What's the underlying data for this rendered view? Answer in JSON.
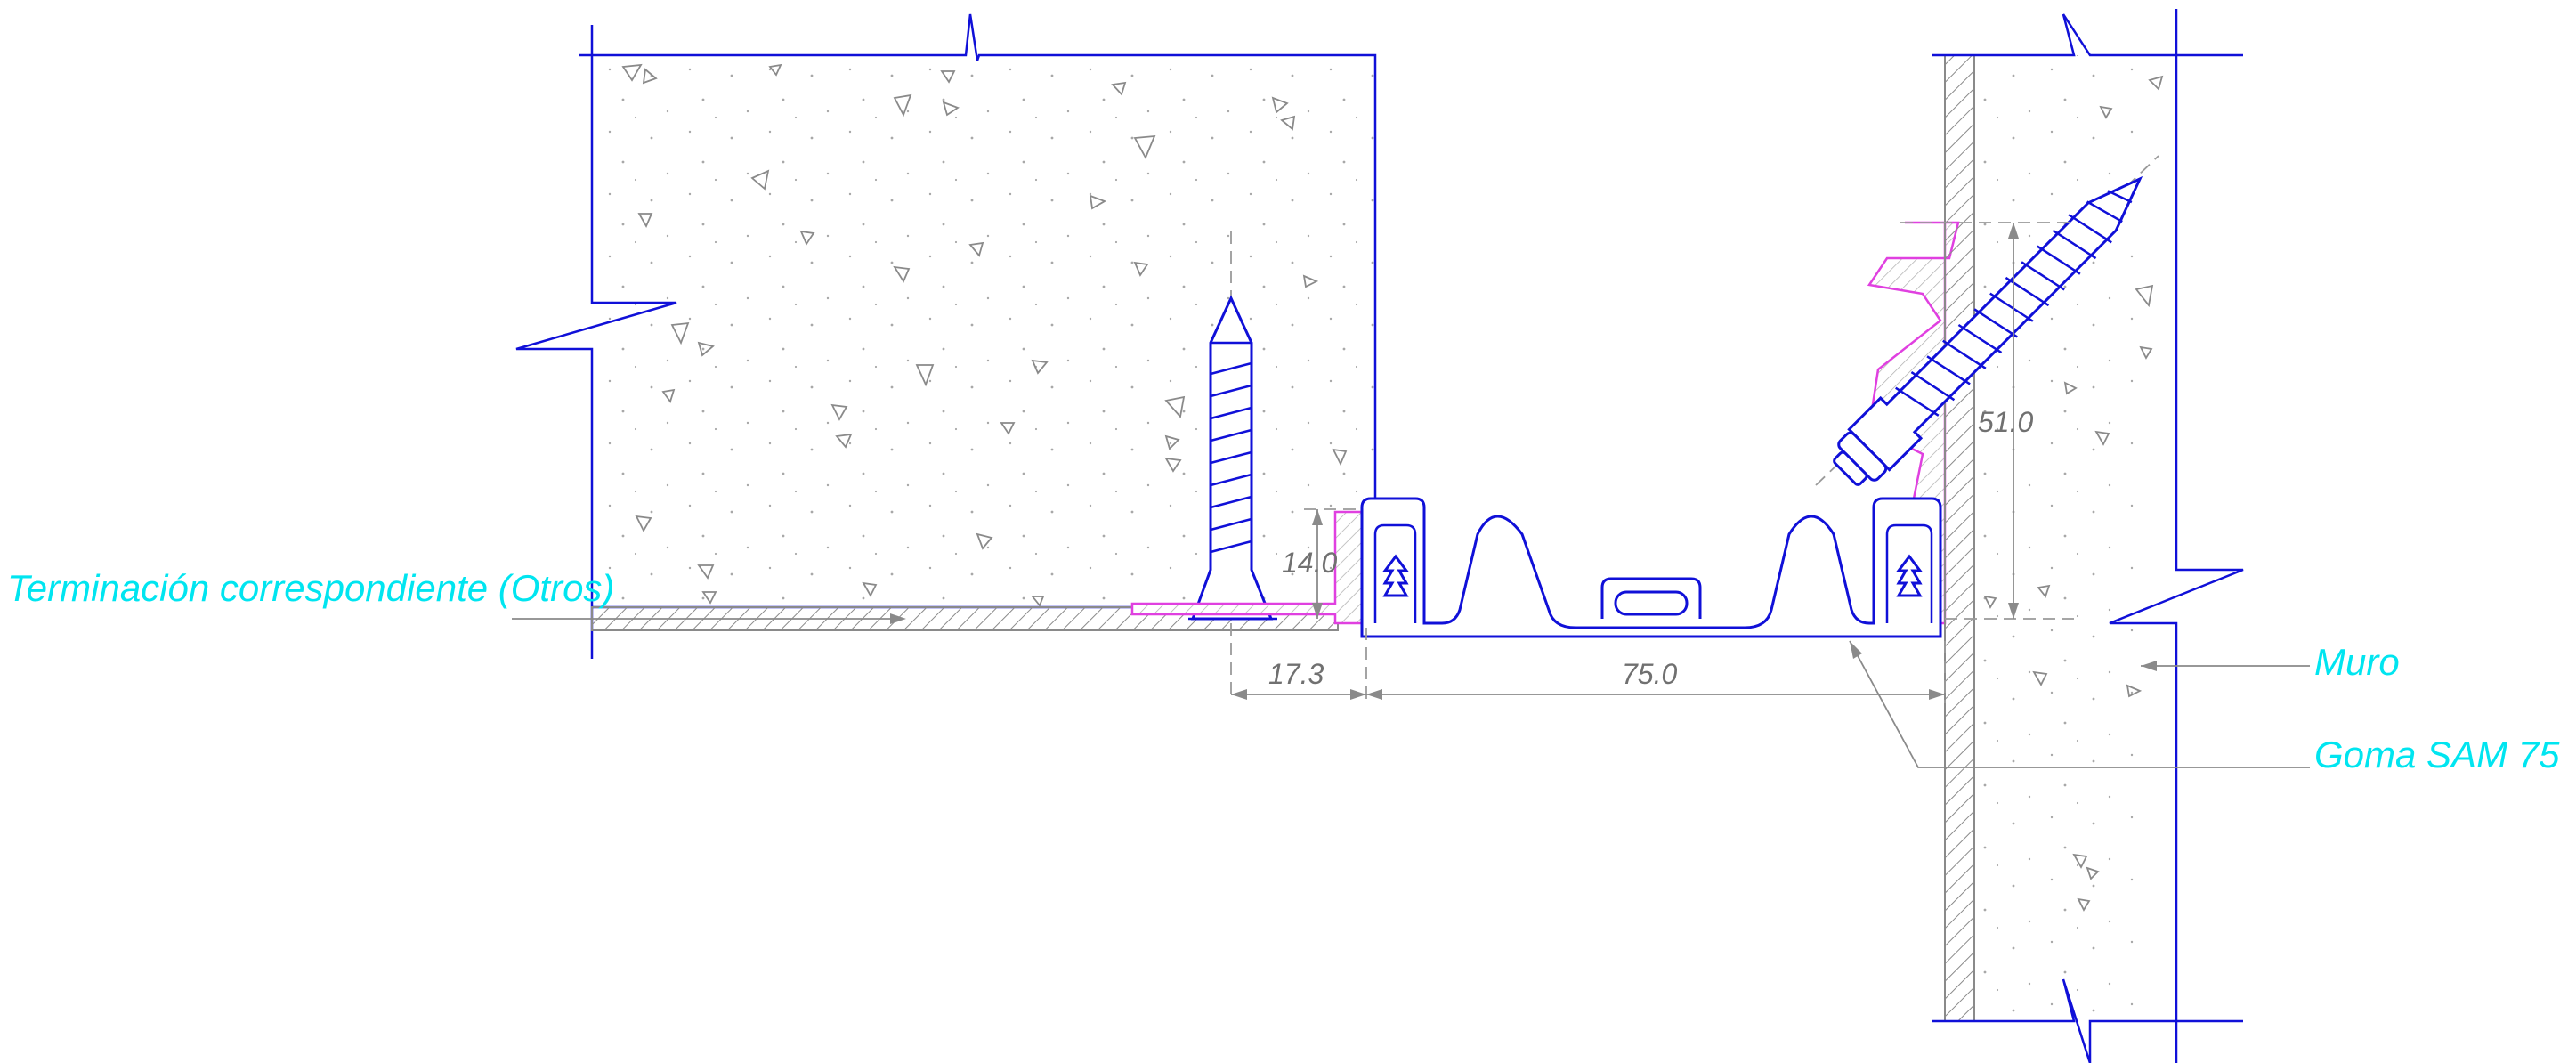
{
  "labels": {
    "left_finish": "Terminación correspondiente (Otros)",
    "wall": "Muro",
    "rubber": "Goma SAM 75"
  },
  "dimensions": {
    "height_small": "14.0",
    "width_offset": "17.3",
    "width_joint": "75.0",
    "height_bracket": "51.0"
  },
  "colors": {
    "outline": "#1010d8",
    "annotation": "#00e5f0",
    "profile": "#e040e0",
    "dimension": "#707070"
  }
}
